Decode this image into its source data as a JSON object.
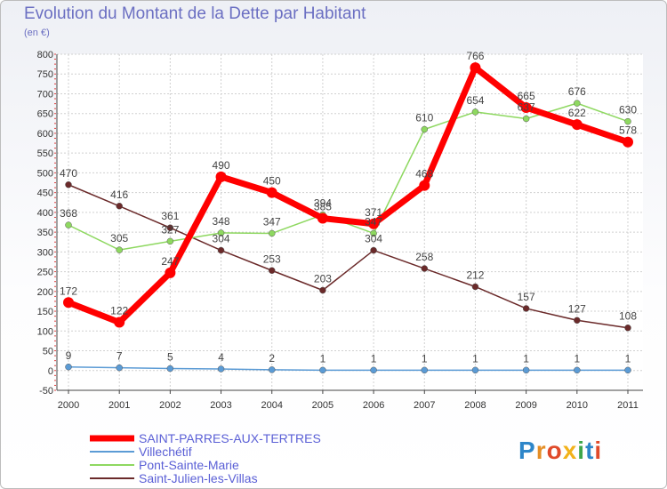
{
  "title": "Evolution du Montant de la Dette par Habitant",
  "subtitle": "(en €)",
  "logo": "Proxiti",
  "chart_data": {
    "type": "line",
    "title": "Evolution du Montant de la Dette par Habitant",
    "ylabel": "(en €)",
    "xlabel": "",
    "ylim": [
      -50,
      800
    ],
    "yticks": [
      -50,
      0,
      50,
      100,
      150,
      200,
      250,
      300,
      350,
      400,
      450,
      500,
      550,
      600,
      650,
      700,
      750,
      800
    ],
    "x": [
      "2000",
      "2001",
      "2002",
      "2003",
      "2004",
      "2005",
      "2006",
      "2007",
      "2008",
      "2009",
      "2010",
      "2011"
    ],
    "grid": true,
    "legend_position": "bottom-left",
    "series": [
      {
        "name": "SAINT-PARRES-AUX-TERTRES",
        "color": "#ff0000",
        "values": [
          172,
          122,
          247,
          490,
          450,
          385,
          371,
          468,
          766,
          665,
          622,
          578
        ]
      },
      {
        "name": "Villechétif",
        "color": "#5b9bd5",
        "values": [
          9,
          7,
          5,
          4,
          2,
          1,
          1,
          1,
          1,
          1,
          1,
          1
        ]
      },
      {
        "name": "Pont-Sainte-Marie",
        "color": "#8ed860",
        "values": [
          368,
          305,
          327,
          348,
          347,
          394,
          347,
          610,
          654,
          637,
          676,
          630
        ]
      },
      {
        "name": "Saint-Julien-les-Villas",
        "color": "#6b2a2a",
        "values": [
          470,
          416,
          361,
          304,
          253,
          203,
          304,
          258,
          212,
          157,
          127,
          108
        ]
      }
    ]
  }
}
